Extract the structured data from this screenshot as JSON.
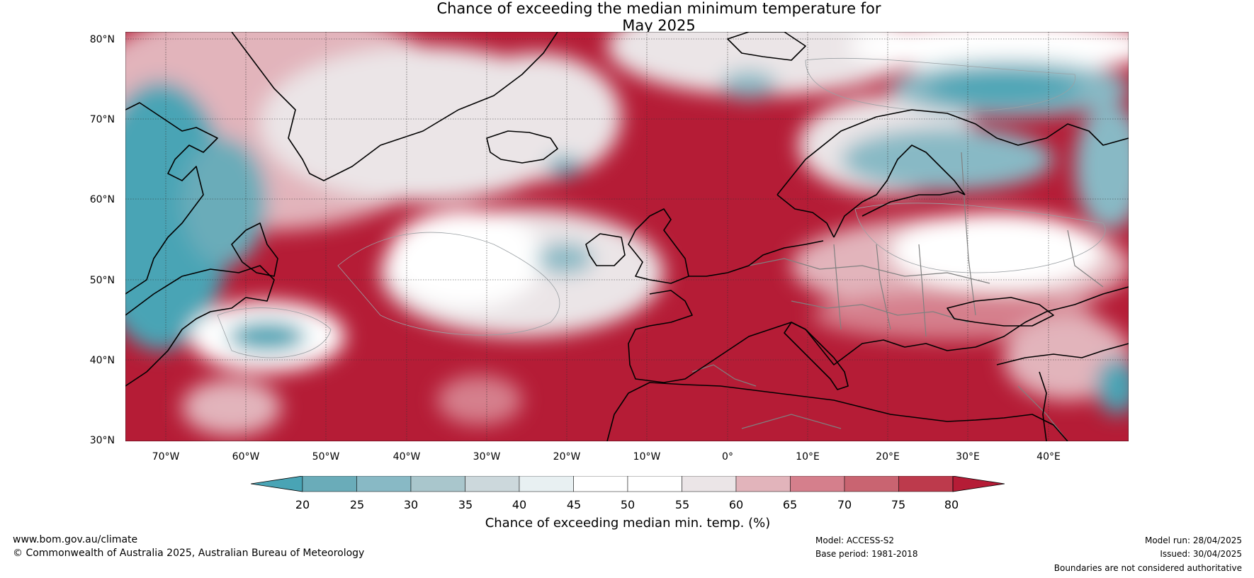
{
  "title": {
    "line1": "Chance of exceeding the median minimum temperature for",
    "line2": "May 2025"
  },
  "axes": {
    "lat_labels": [
      "80°N",
      "70°N",
      "60°N",
      "50°N",
      "40°N",
      "30°N"
    ],
    "lat_values": [
      80,
      70,
      60,
      50,
      40,
      30
    ],
    "lon_labels": [
      "70°W",
      "60°W",
      "50°W",
      "40°W",
      "30°W",
      "20°W",
      "10°W",
      "0°",
      "10°E",
      "20°E",
      "30°E",
      "40°E"
    ],
    "lon_values": [
      -70,
      -60,
      -50,
      -40,
      -30,
      -20,
      -10,
      0,
      10,
      20,
      30,
      40
    ],
    "lon_range": [
      -75,
      50
    ],
    "lat_range": [
      30,
      81
    ]
  },
  "colorbar": {
    "ticks": [
      "20",
      "25",
      "30",
      "35",
      "40",
      "45",
      "50",
      "55",
      "60",
      "65",
      "70",
      "75",
      "80"
    ],
    "label": "Chance of exceeding median min. temp. (%)",
    "colors": [
      "#49a4b5",
      "#6aacb9",
      "#88b9c5",
      "#a9c6cc",
      "#ccd8dc",
      "#e8f0f2",
      "#ffffff",
      "#ffffff",
      "#ebe5e7",
      "#e2b4bb",
      "#d57f8c",
      "#c96471",
      "#bd3a4c",
      "#b51c36"
    ]
  },
  "footer": {
    "website": "www.bom.gov.au/climate",
    "copyright": "© Commonwealth of Australia 2025, Australian Bureau of Meteorology",
    "model": "Model: ACCESS-S2",
    "base_period": "Base period: 1981-2018",
    "model_run": "Model run: 28/04/2025",
    "issued": "Issued: 30/04/2025",
    "disclaimer": "Boundaries are not considered authoritative"
  }
}
